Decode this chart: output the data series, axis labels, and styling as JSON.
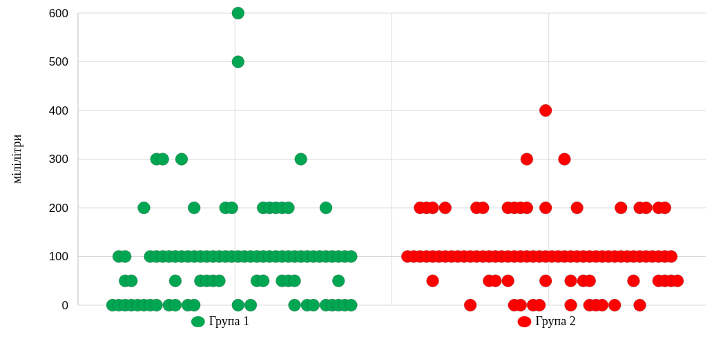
{
  "chart_data": {
    "type": "scatter",
    "ylabel": "мілілітри",
    "categories": [
      null,
      null,
      null,
      null,
      null,
      null,
      null,
      null,
      null,
      null,
      null,
      null,
      null,
      null,
      null,
      null,
      null,
      null,
      null,
      null,
      null,
      null,
      null,
      null,
      null,
      null,
      null,
      null,
      null,
      null,
      null,
      null,
      null,
      null,
      null,
      null,
      null,
      null,
      null,
      null,
      null,
      null,
      null,
      null,
      null,
      null,
      null,
      null,
      null,
      null,
      null,
      null,
      null,
      null,
      null,
      null,
      null,
      null,
      null,
      null,
      null,
      null,
      null,
      null,
      null,
      null,
      null,
      null,
      null,
      null,
      null,
      null,
      null,
      null,
      null,
      null,
      null,
      null,
      null,
      null,
      null,
      null,
      null,
      null,
      null,
      null,
      null,
      null,
      null,
      null,
      null,
      null,
      null,
      null,
      null,
      null,
      null,
      null,
      null,
      null
    ],
    "ylim": [
      0,
      600
    ],
    "yticks": [
      0,
      100,
      200,
      300,
      400,
      500,
      600
    ],
    "tick_labels": "y",
    "grid": true,
    "legend": "bottom",
    "marker": "circle",
    "series": [
      {
        "name": "Група 1",
        "color": "#00a651",
        "values": [
          null,
          null,
          null,
          null,
          null,
          null,
          100,
          100,
          null,
          null,
          null,
          100,
          100,
          100,
          100,
          100,
          100,
          100,
          100,
          100,
          100,
          100,
          100,
          100,
          100,
          100,
          100,
          100,
          100,
          100,
          100,
          100,
          100,
          100,
          100,
          100,
          100,
          100,
          100,
          100,
          100,
          100,
          100,
          100,
          null,
          null,
          null,
          null,
          null,
          null,
          null,
          null,
          null,
          null,
          null,
          null,
          null,
          null,
          null,
          null,
          null,
          null,
          null,
          null,
          null,
          null,
          null,
          null,
          null,
          null,
          null,
          null,
          null,
          null,
          null,
          null,
          null,
          null,
          null,
          null,
          null,
          null,
          null,
          null,
          null,
          null,
          null,
          null,
          null,
          null,
          null,
          null,
          null,
          null,
          null,
          null,
          null,
          null,
          null,
          null
        ]
      },
      {
        "color": "#00a651",
        "values": [
          null,
          null,
          null,
          null,
          null,
          0,
          0,
          0,
          0,
          0,
          0,
          0,
          0,
          null,
          0,
          0,
          null,
          0,
          0,
          null,
          null,
          null,
          null,
          null,
          null,
          0,
          null,
          0,
          null,
          null,
          null,
          null,
          null,
          null,
          0,
          null,
          0,
          0,
          null,
          0,
          0,
          0,
          0,
          0,
          null,
          null,
          null,
          null,
          null,
          null,
          null,
          null,
          null,
          null,
          null,
          null,
          null,
          null,
          null,
          null,
          null,
          null,
          null,
          null,
          null,
          null,
          null,
          null,
          null,
          null,
          null,
          null,
          null,
          null,
          null,
          null,
          null,
          null,
          null,
          null,
          null,
          null,
          null,
          null,
          null,
          null,
          null,
          null,
          null,
          null,
          null,
          null,
          null,
          null,
          null,
          null,
          null,
          null,
          null,
          null
        ]
      },
      {
        "color": "#00a651",
        "values": [
          null,
          null,
          null,
          null,
          null,
          null,
          null,
          50,
          50,
          null,
          null,
          null,
          null,
          null,
          null,
          50,
          null,
          null,
          null,
          50,
          50,
          50,
          50,
          null,
          null,
          null,
          null,
          null,
          50,
          50,
          null,
          null,
          50,
          50,
          50,
          null,
          null,
          null,
          null,
          null,
          null,
          50,
          null,
          null,
          null,
          null,
          null,
          null,
          null,
          null,
          null,
          null,
          null,
          null,
          null,
          null,
          null,
          null,
          null,
          null,
          null,
          null,
          null,
          null,
          null,
          null,
          null,
          null,
          null,
          null,
          null,
          null,
          null,
          null,
          null,
          null,
          null,
          null,
          null,
          null,
          null,
          null,
          null,
          null,
          null,
          null,
          null,
          null,
          null,
          null,
          null,
          null,
          null,
          null,
          null,
          null,
          null,
          null,
          null,
          null
        ]
      },
      {
        "color": "#00a651",
        "values": [
          null,
          null,
          null,
          null,
          null,
          null,
          null,
          null,
          null,
          null,
          200,
          null,
          null,
          null,
          null,
          null,
          null,
          null,
          200,
          null,
          null,
          null,
          null,
          200,
          200,
          null,
          null,
          null,
          null,
          200,
          200,
          200,
          200,
          200,
          null,
          null,
          null,
          null,
          null,
          200,
          null,
          null,
          null,
          null,
          null,
          null,
          null,
          null,
          null,
          null,
          null,
          null,
          null,
          null,
          null,
          null,
          null,
          null,
          null,
          null,
          null,
          null,
          null,
          null,
          null,
          null,
          null,
          null,
          null,
          null,
          null,
          null,
          null,
          null,
          null,
          null,
          null,
          null,
          null,
          null,
          null,
          null,
          null,
          null,
          null,
          null,
          null,
          null,
          null,
          null,
          null,
          null,
          null,
          null,
          null,
          null,
          null,
          null,
          null,
          null
        ]
      },
      {
        "color": "#00a651",
        "values": [
          null,
          null,
          null,
          null,
          null,
          null,
          null,
          null,
          null,
          null,
          null,
          null,
          300,
          300,
          null,
          null,
          300,
          null,
          null,
          null,
          null,
          null,
          null,
          null,
          null,
          null,
          null,
          null,
          null,
          null,
          null,
          null,
          null,
          null,
          null,
          300,
          null,
          null,
          null,
          null,
          null,
          null,
          null,
          null,
          null,
          null,
          null,
          null,
          null,
          null,
          null,
          null,
          null,
          null,
          null,
          null,
          null,
          null,
          null,
          null,
          null,
          null,
          null,
          null,
          null,
          null,
          null,
          null,
          null,
          null,
          null,
          null,
          null,
          null,
          null,
          null,
          null,
          null,
          null,
          null,
          null,
          null,
          null,
          null,
          null,
          null,
          null,
          null,
          null,
          null,
          null,
          null,
          null,
          null,
          null,
          null,
          null,
          null,
          null,
          null
        ]
      },
      {
        "color": "#00a651",
        "values": [
          null,
          null,
          null,
          null,
          null,
          null,
          null,
          null,
          null,
          null,
          null,
          null,
          null,
          null,
          null,
          null,
          null,
          null,
          null,
          null,
          null,
          null,
          null,
          null,
          null,
          500,
          null,
          null,
          null,
          null,
          null,
          null,
          null,
          null,
          null,
          null,
          null,
          null,
          null,
          null,
          null,
          null,
          null,
          null,
          null,
          null,
          null,
          null,
          null,
          null,
          null,
          null,
          null,
          null,
          null,
          null,
          null,
          null,
          null,
          null,
          null,
          null,
          null,
          null,
          null,
          null,
          null,
          null,
          null,
          null,
          null,
          null,
          null,
          null,
          null,
          null,
          null,
          null,
          null,
          null,
          null,
          null,
          null,
          null,
          null,
          null,
          null,
          null,
          null,
          null,
          null,
          null,
          null,
          null,
          null,
          null,
          null,
          null,
          null,
          null
        ]
      },
      {
        "color": "#00a651",
        "values": [
          null,
          null,
          null,
          null,
          null,
          null,
          null,
          null,
          null,
          null,
          null,
          null,
          null,
          null,
          null,
          null,
          null,
          null,
          null,
          null,
          null,
          null,
          null,
          null,
          null,
          600,
          null,
          null,
          null,
          null,
          null,
          null,
          null,
          null,
          null,
          null,
          null,
          null,
          null,
          null,
          null,
          null,
          null,
          null,
          null,
          null,
          null,
          null,
          null,
          null,
          null,
          null,
          null,
          null,
          null,
          null,
          null,
          null,
          null,
          null,
          null,
          null,
          null,
          null,
          null,
          null,
          null,
          null,
          null,
          null,
          null,
          null,
          null,
          null,
          null,
          null,
          null,
          null,
          null,
          null,
          null,
          null,
          null,
          null,
          null,
          null,
          null,
          null,
          null,
          null,
          null,
          null,
          null,
          null,
          null,
          null,
          null,
          null,
          null,
          null
        ]
      },
      {
        "name": "Група 2",
        "color": "#ff0000",
        "values": [
          null,
          null,
          null,
          null,
          null,
          null,
          null,
          null,
          null,
          null,
          null,
          null,
          null,
          null,
          null,
          null,
          null,
          null,
          null,
          null,
          null,
          null,
          null,
          null,
          null,
          null,
          null,
          null,
          null,
          null,
          null,
          null,
          null,
          null,
          null,
          null,
          null,
          null,
          null,
          null,
          null,
          null,
          null,
          null,
          null,
          null,
          null,
          null,
          null,
          null,
          null,
          null,
          100,
          100,
          100,
          100,
          100,
          100,
          100,
          100,
          100,
          100,
          100,
          100,
          100,
          100,
          100,
          100,
          100,
          100,
          100,
          100,
          100,
          100,
          100,
          100,
          100,
          100,
          100,
          100,
          100,
          100,
          100,
          100,
          100,
          100,
          100,
          100,
          100,
          100,
          100,
          100,
          100,
          100,
          100,
          null,
          null,
          null,
          null,
          null
        ]
      },
      {
        "color": "#ff0000",
        "values": [
          null,
          null,
          null,
          null,
          null,
          null,
          null,
          null,
          null,
          null,
          null,
          null,
          null,
          null,
          null,
          null,
          null,
          null,
          null,
          null,
          null,
          null,
          null,
          null,
          null,
          null,
          null,
          null,
          null,
          null,
          null,
          null,
          null,
          null,
          null,
          null,
          null,
          null,
          null,
          null,
          null,
          null,
          null,
          null,
          null,
          null,
          null,
          null,
          null,
          null,
          null,
          null,
          null,
          null,
          null,
          null,
          null,
          null,
          null,
          null,
          null,
          null,
          0,
          null,
          null,
          null,
          null,
          null,
          null,
          0,
          0,
          null,
          0,
          0,
          null,
          null,
          null,
          null,
          0,
          null,
          null,
          0,
          0,
          0,
          null,
          0,
          null,
          null,
          null,
          0,
          null,
          null,
          null,
          null,
          null,
          null,
          null,
          null,
          null,
          null
        ]
      },
      {
        "color": "#ff0000",
        "values": [
          null,
          null,
          null,
          null,
          null,
          null,
          null,
          null,
          null,
          null,
          null,
          null,
          null,
          null,
          null,
          null,
          null,
          null,
          null,
          null,
          null,
          null,
          null,
          null,
          null,
          null,
          null,
          null,
          null,
          null,
          null,
          null,
          null,
          null,
          null,
          null,
          null,
          null,
          null,
          null,
          null,
          null,
          null,
          null,
          null,
          null,
          null,
          null,
          null,
          null,
          null,
          null,
          null,
          null,
          null,
          null,
          50,
          null,
          null,
          null,
          null,
          null,
          null,
          null,
          null,
          50,
          50,
          null,
          50,
          null,
          null,
          null,
          null,
          null,
          50,
          null,
          null,
          null,
          50,
          null,
          50,
          50,
          null,
          null,
          null,
          null,
          null,
          null,
          50,
          null,
          null,
          null,
          50,
          50,
          50,
          50,
          null,
          null,
          null,
          null
        ]
      },
      {
        "color": "#ff0000",
        "values": [
          null,
          null,
          null,
          null,
          null,
          null,
          null,
          null,
          null,
          null,
          null,
          null,
          null,
          null,
          null,
          null,
          null,
          null,
          null,
          null,
          null,
          null,
          null,
          null,
          null,
          null,
          null,
          null,
          null,
          null,
          null,
          null,
          null,
          null,
          null,
          null,
          null,
          null,
          null,
          null,
          null,
          null,
          null,
          null,
          null,
          null,
          null,
          null,
          null,
          null,
          null,
          null,
          null,
          null,
          200,
          200,
          200,
          null,
          200,
          null,
          null,
          null,
          null,
          200,
          200,
          null,
          null,
          null,
          200,
          200,
          200,
          200,
          null,
          null,
          200,
          null,
          null,
          null,
          null,
          200,
          null,
          null,
          null,
          null,
          null,
          null,
          200,
          null,
          null,
          200,
          200,
          null,
          200,
          200,
          null,
          null,
          null,
          null,
          null,
          null
        ]
      },
      {
        "color": "#ff0000",
        "values": [
          null,
          null,
          null,
          null,
          null,
          null,
          null,
          null,
          null,
          null,
          null,
          null,
          null,
          null,
          null,
          null,
          null,
          null,
          null,
          null,
          null,
          null,
          null,
          null,
          null,
          null,
          null,
          null,
          null,
          null,
          null,
          null,
          null,
          null,
          null,
          null,
          null,
          null,
          null,
          null,
          null,
          null,
          null,
          null,
          null,
          null,
          null,
          null,
          null,
          null,
          null,
          null,
          null,
          null,
          null,
          null,
          null,
          null,
          null,
          null,
          null,
          null,
          null,
          null,
          null,
          null,
          null,
          null,
          null,
          null,
          null,
          300,
          null,
          null,
          null,
          null,
          null,
          300,
          null,
          null,
          null,
          null,
          null,
          null,
          null,
          null,
          null,
          null,
          null,
          null,
          null,
          null,
          null,
          null,
          null,
          null,
          null,
          null,
          null,
          null
        ]
      },
      {
        "color": "#ff0000",
        "values": [
          null,
          null,
          null,
          null,
          null,
          null,
          null,
          null,
          null,
          null,
          null,
          null,
          null,
          null,
          null,
          null,
          null,
          null,
          null,
          null,
          null,
          null,
          null,
          null,
          null,
          null,
          null,
          null,
          null,
          null,
          null,
          null,
          null,
          null,
          null,
          null,
          null,
          null,
          null,
          null,
          null,
          null,
          null,
          null,
          null,
          null,
          null,
          null,
          null,
          null,
          null,
          null,
          null,
          null,
          null,
          null,
          null,
          null,
          null,
          null,
          null,
          null,
          null,
          null,
          null,
          null,
          null,
          null,
          null,
          null,
          null,
          null,
          null,
          null,
          400,
          null,
          null,
          null,
          null,
          null,
          null,
          null,
          null,
          null,
          null,
          null,
          null,
          null,
          null,
          null,
          null,
          null,
          null,
          null,
          null,
          null,
          null,
          null,
          null,
          null
        ]
      }
    ]
  }
}
